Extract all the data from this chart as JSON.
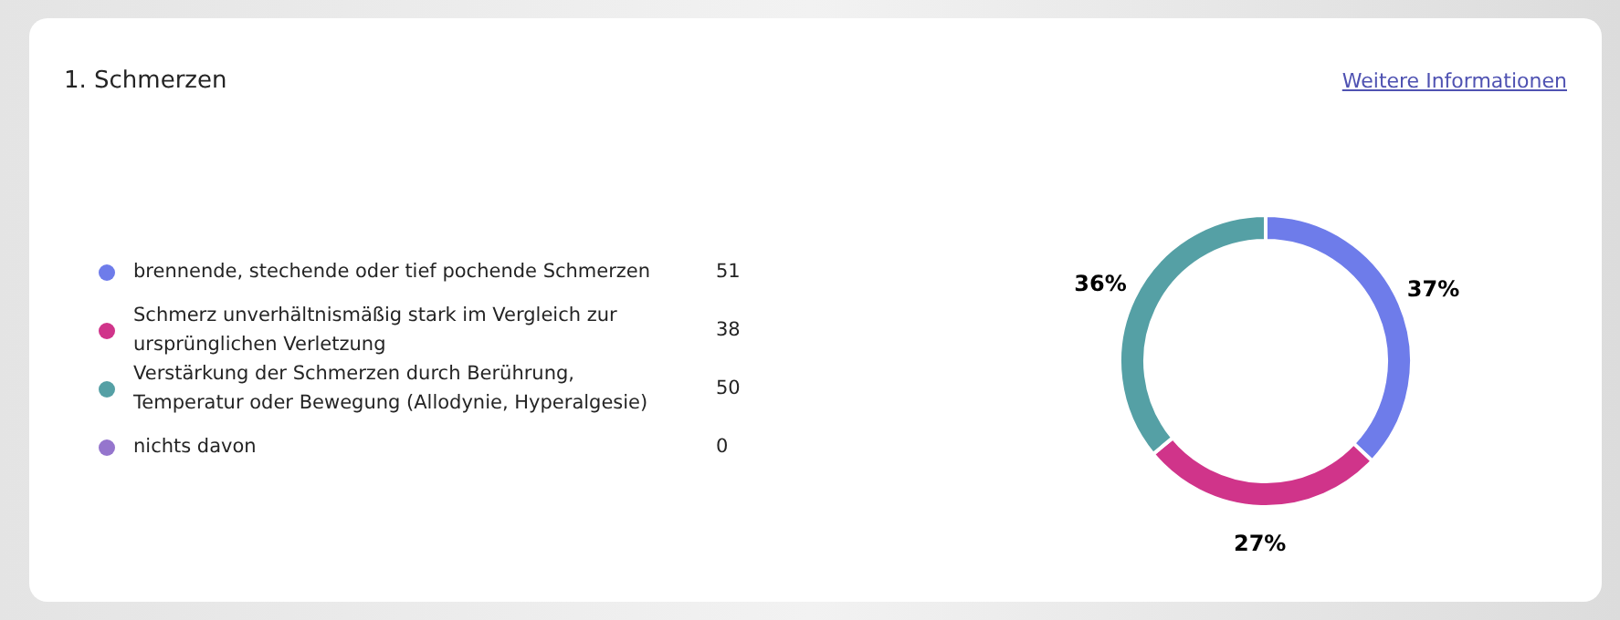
{
  "chart_data": {
    "type": "donut",
    "title": "1. Schmerzen",
    "annotations": [
      "Weitere Informationen",
      {
        "text": "51",
        "x": "brennende, stechende oder tief pochende Schmerzen"
      },
      {
        "text": "38",
        "x": "Schmerz unverhältnismäßig stark im Vergleich zur ursprünglichen Verletzung"
      },
      {
        "text": "50",
        "x": "Verstärkung der Schmerzen durch Berührung, Temperatur oder Bewegung (Allodynie, Hyperalgesie)"
      },
      {
        "text": "0",
        "x": "nichts davon"
      }
    ],
    "categories": [
      "brennende, stechende oder tief pochende Schmerzen",
      "Schmerz unverhältnismäßig stark im Vergleich zur ursprünglichen Verletzung",
      "Verstärkung der Schmerzen durch Berührung, Temperatur oder Bewegung (Allodynie, Hyperalgesie)",
      "nichts davon"
    ],
    "values": [
      37,
      27,
      36,
      0
    ],
    "colors": [
      "#6e7cea",
      "#d0348a",
      "#55a0a5",
      "#9575cd"
    ],
    "value_labels": [
      "37%",
      "27%",
      "36%",
      null
    ],
    "legend": "left"
  }
}
